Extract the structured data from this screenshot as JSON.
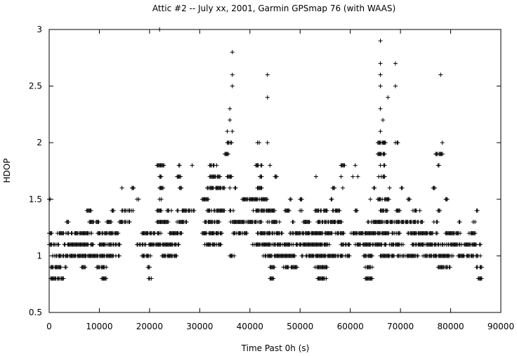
{
  "chart_data": {
    "type": "scatter",
    "title": "Attic #2 -- July xx, 2001, Garmin GPSmap 76 (with WAAS)",
    "xlabel": "Time Past 0h  (s)",
    "ylabel": "HDOP",
    "xlim": [
      0,
      90000
    ],
    "ylim": [
      0.5,
      3
    ],
    "x_ticks": [
      "0",
      "10000",
      "20000",
      "30000",
      "40000",
      "50000",
      "60000",
      "70000",
      "80000",
      "90000"
    ],
    "y_ticks": [
      "0.5",
      "1",
      "1.5",
      "2",
      "2.5",
      "3"
    ],
    "grid": false,
    "marker": "+",
    "band_ranges": [
      {
        "y": 0.8,
        "x": [
          [
            300,
            3000
          ],
          [
            10500,
            11500
          ],
          [
            19500,
            20500
          ],
          [
            44000,
            45000
          ],
          [
            53500,
            55500
          ],
          [
            63000,
            64500
          ],
          [
            85500,
            86500
          ]
        ]
      },
      {
        "y": 0.9,
        "x": [
          [
            300,
            3500
          ],
          [
            6500,
            7200
          ],
          [
            9500,
            11500
          ],
          [
            19500,
            20500
          ],
          [
            44000,
            45000
          ],
          [
            46500,
            49500
          ],
          [
            53000,
            55500
          ],
          [
            63000,
            64500
          ],
          [
            77500,
            80000
          ],
          [
            85000,
            86500
          ]
        ]
      },
      {
        "y": 1.0,
        "x": [
          [
            500,
            7500
          ],
          [
            7000,
            14000
          ],
          [
            18500,
            20500
          ],
          [
            22500,
            25500
          ],
          [
            36000,
            37000
          ],
          [
            42500,
            49000
          ],
          [
            50000,
            58500
          ],
          [
            59000,
            60000
          ],
          [
            62500,
            64500
          ],
          [
            66000,
            73500
          ],
          [
            74500,
            80500
          ],
          [
            81500,
            86000
          ]
        ]
      },
      {
        "y": 1.1,
        "x": [
          [
            0,
            2000
          ],
          [
            3000,
            9000
          ],
          [
            10000,
            14500
          ],
          [
            17500,
            26000
          ],
          [
            31000,
            34500
          ],
          [
            40500,
            56000
          ],
          [
            58000,
            60000
          ],
          [
            61000,
            71000
          ],
          [
            72000,
            86000
          ]
        ]
      },
      {
        "y": 1.2,
        "x": [
          [
            0,
            600
          ],
          [
            1500,
            8500
          ],
          [
            9500,
            14000
          ],
          [
            18500,
            22500
          ],
          [
            24000,
            26500
          ],
          [
            30500,
            34500
          ],
          [
            36500,
            39500
          ],
          [
            41500,
            46500
          ],
          [
            48000,
            59000
          ],
          [
            60000,
            70000
          ],
          [
            71500,
            77500
          ],
          [
            79000,
            82000
          ],
          [
            83500,
            85000
          ]
        ]
      },
      {
        "y": 1.3,
        "x": [
          [
            3500,
            4000
          ],
          [
            8000,
            10000
          ],
          [
            11500,
            12500
          ],
          [
            14000,
            16500
          ],
          [
            21500,
            24000
          ],
          [
            25500,
            27500
          ],
          [
            31000,
            34000
          ],
          [
            36000,
            42500
          ],
          [
            43500,
            46000
          ],
          [
            48500,
            49000
          ],
          [
            50500,
            52000
          ],
          [
            53500,
            58500
          ],
          [
            63500,
            74500
          ],
          [
            76500,
            77500
          ],
          [
            81500,
            82000
          ],
          [
            84500,
            85000
          ]
        ]
      },
      {
        "y": 1.4,
        "x": [
          [
            3500,
            4000
          ],
          [
            7500,
            8500
          ],
          [
            12500,
            13000
          ],
          [
            14500,
            17000
          ],
          [
            21500,
            22500
          ],
          [
            23500,
            24500
          ],
          [
            25500,
            26000
          ],
          [
            26500,
            29000
          ],
          [
            31500,
            35000
          ],
          [
            36000,
            37000
          ],
          [
            40500,
            45000
          ],
          [
            47000,
            48000
          ],
          [
            50000,
            50500
          ],
          [
            53000,
            55500
          ],
          [
            56500,
            58000
          ],
          [
            61000,
            61500
          ],
          [
            66000,
            67500
          ],
          [
            69000,
            70000
          ],
          [
            72500,
            74000
          ],
          [
            77500,
            78000
          ],
          [
            85000,
            85500
          ]
        ]
      },
      {
        "y": 1.5,
        "x": [
          [
            0,
            300
          ],
          [
            17500,
            18000
          ],
          [
            22000,
            22500
          ],
          [
            30500,
            32000
          ],
          [
            38500,
            43500
          ],
          [
            48000,
            48500
          ],
          [
            50000,
            50500
          ],
          [
            56000,
            56500
          ],
          [
            65500,
            68000
          ],
          [
            71500,
            72000
          ],
          [
            79000,
            79500
          ]
        ]
      },
      {
        "y": 1.6,
        "x": [
          [
            14500,
            15000
          ],
          [
            16500,
            17000
          ],
          [
            22000,
            23000
          ],
          [
            26000,
            26500
          ],
          [
            31500,
            35000
          ],
          [
            37000,
            37500
          ],
          [
            41500,
            42500
          ],
          [
            56500,
            57000
          ],
          [
            64500,
            65000
          ],
          [
            67500,
            68000
          ],
          [
            70000,
            70500
          ],
          [
            76500,
            77000
          ]
        ]
      },
      {
        "y": 1.7,
        "x": [
          [
            22000,
            23000
          ],
          [
            25500,
            26500
          ],
          [
            32000,
            34500
          ],
          [
            35500,
            36500
          ],
          [
            42000,
            42500
          ],
          [
            45000,
            45500
          ],
          [
            53000,
            53500
          ],
          [
            58000,
            58500
          ],
          [
            65500,
            67000
          ]
        ]
      },
      {
        "y": 1.8,
        "x": [
          [
            21500,
            23000
          ],
          [
            25500,
            26500
          ],
          [
            28500,
            29000
          ],
          [
            32000,
            33500
          ],
          [
            41000,
            42500
          ],
          [
            58000,
            59000
          ],
          [
            66000,
            67000
          ],
          [
            77500,
            78000
          ]
        ]
      },
      {
        "y": 1.9,
        "x": [
          [
            35000,
            36000
          ],
          [
            65500,
            67000
          ],
          [
            77000,
            78500
          ]
        ]
      },
      {
        "y": 2.0,
        "x": [
          [
            35500,
            36500
          ],
          [
            41500,
            42000
          ],
          [
            65500,
            67000
          ],
          [
            69000,
            69500
          ],
          [
            78000,
            78500
          ]
        ]
      }
    ],
    "sparse_points": [
      [
        22000,
        3.0
      ],
      [
        36500,
        2.8
      ],
      [
        66000,
        2.9
      ],
      [
        36500,
        2.6
      ],
      [
        43500,
        2.6
      ],
      [
        66000,
        2.7
      ],
      [
        69000,
        2.7
      ],
      [
        78000,
        2.6
      ],
      [
        66000,
        2.6
      ],
      [
        36500,
        2.5
      ],
      [
        66000,
        2.5
      ],
      [
        69000,
        2.5
      ],
      [
        43500,
        2.4
      ],
      [
        67500,
        2.4
      ],
      [
        36000,
        2.3
      ],
      [
        66000,
        2.3
      ],
      [
        36000,
        2.2
      ],
      [
        66500,
        2.2
      ],
      [
        35500,
        2.1
      ],
      [
        36500,
        2.1
      ],
      [
        66000,
        2.1
      ],
      [
        65500,
        2.0
      ],
      [
        67000,
        2.0
      ],
      [
        69500,
        2.0
      ],
      [
        43500,
        2.0
      ],
      [
        44000,
        1.8
      ],
      [
        36000,
        1.6
      ],
      [
        60500,
        1.7
      ],
      [
        61500,
        1.7
      ],
      [
        61000,
        1.8
      ],
      [
        74500,
        1.1
      ],
      [
        64000,
        1.5
      ],
      [
        58500,
        1.6
      ]
    ]
  }
}
